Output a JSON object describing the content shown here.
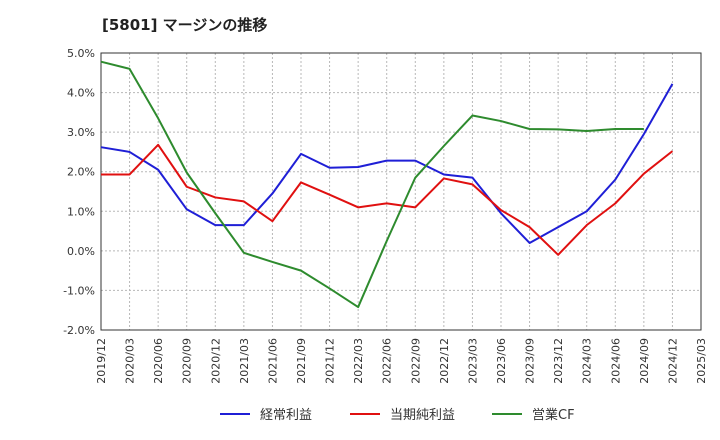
{
  "title": "[5801]  マージンの推移",
  "chart_data": {
    "type": "line",
    "x": [
      "2019/12",
      "2020/03",
      "2020/06",
      "2020/09",
      "2020/12",
      "2021/03",
      "2021/06",
      "2021/09",
      "2021/12",
      "2022/03",
      "2022/06",
      "2022/09",
      "2022/12",
      "2023/03",
      "2023/06",
      "2023/09",
      "2023/12",
      "2024/03",
      "2024/06",
      "2024/09",
      "2024/12",
      "2025/03"
    ],
    "y_ticks": [
      "5.0%",
      "4.0%",
      "3.0%",
      "2.0%",
      "1.0%",
      "0.0%",
      "-1.0%",
      "-2.0%"
    ],
    "ylim": [
      -2.0,
      5.0
    ],
    "grid": true,
    "legend_position": "bottom",
    "series": [
      {
        "name": "経常利益",
        "color": "#1f1fd6",
        "values": [
          2.62,
          2.5,
          2.05,
          1.05,
          0.65,
          0.65,
          1.45,
          2.45,
          2.1,
          2.12,
          2.28,
          2.28,
          1.93,
          1.85,
          0.95,
          0.2,
          0.6,
          1.0,
          1.8,
          2.95,
          4.22,
          null
        ]
      },
      {
        "name": "当期純利益",
        "color": "#e01010",
        "values": [
          1.93,
          1.93,
          2.68,
          1.62,
          1.35,
          1.25,
          0.75,
          1.73,
          1.42,
          1.1,
          1.2,
          1.1,
          1.83,
          1.68,
          1.03,
          0.6,
          -0.1,
          0.65,
          1.2,
          1.95,
          2.52,
          null
        ]
      },
      {
        "name": "営業CF",
        "color": "#2e8b2e",
        "values": [
          4.78,
          4.6,
          3.35,
          1.98,
          0.95,
          -0.05,
          -0.28,
          -0.5,
          -0.95,
          -1.42,
          0.25,
          1.85,
          2.65,
          3.42,
          3.28,
          3.08,
          3.07,
          3.03,
          3.08,
          3.08,
          null,
          null
        ]
      }
    ]
  }
}
